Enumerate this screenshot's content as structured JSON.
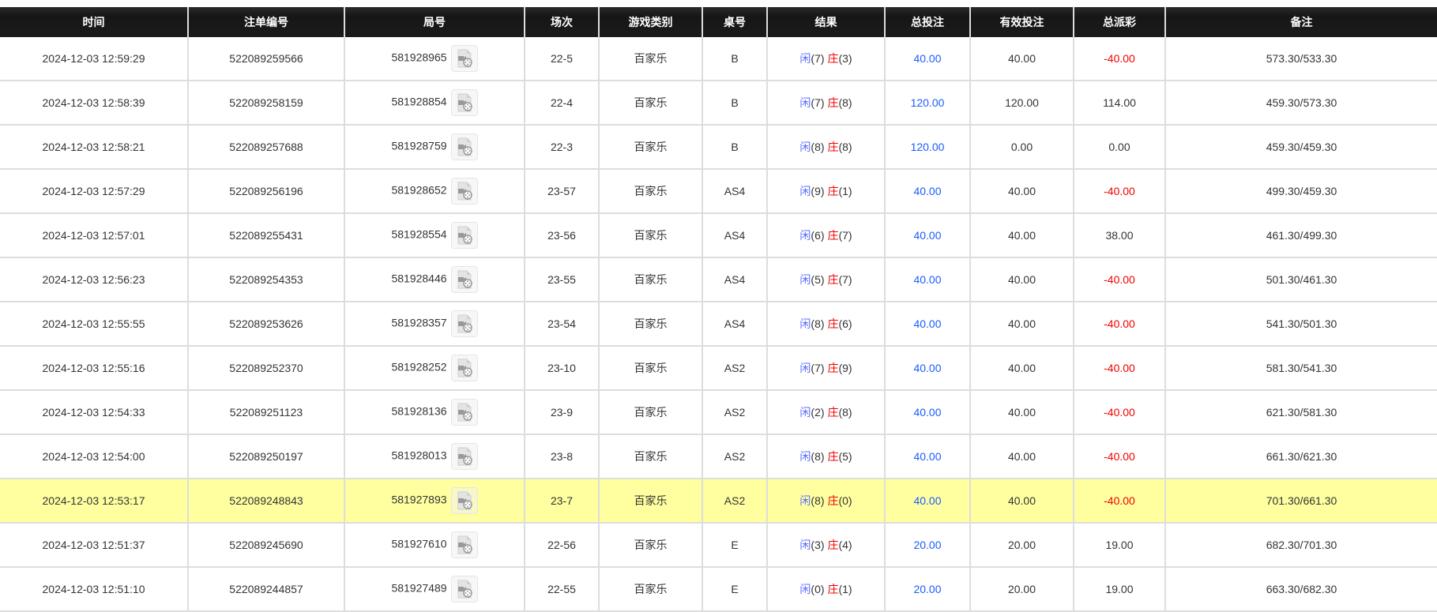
{
  "headers": [
    "时间",
    "注单编号",
    "局号",
    "场次",
    "游戏类别",
    "桌号",
    "结果",
    "总投注",
    "有效投注",
    "总派彩",
    "备注"
  ],
  "labels": {
    "player": "闲",
    "banker": "庄"
  },
  "colors": {
    "header_bg": "#1b1b1b",
    "highlight": "#ffff9f",
    "blue": "#1a5cff",
    "red": "#f00000"
  },
  "highlighted_row": 10,
  "rows": [
    {
      "time": "2024-12-03 12:59:29",
      "bet_id": "522089259566",
      "round": "581928965",
      "session": "22-5",
      "game": "百家乐",
      "table": "B",
      "player": "(7)",
      "banker": "(3)",
      "total": "40.00",
      "valid": "40.00",
      "payout": "-40.00",
      "note": "573.30/533.30"
    },
    {
      "time": "2024-12-03 12:58:39",
      "bet_id": "522089258159",
      "round": "581928854",
      "session": "22-4",
      "game": "百家乐",
      "table": "B",
      "player": "(7)",
      "banker": "(8)",
      "total": "120.00",
      "valid": "120.00",
      "payout": "114.00",
      "note": "459.30/573.30"
    },
    {
      "time": "2024-12-03 12:58:21",
      "bet_id": "522089257688",
      "round": "581928759",
      "session": "22-3",
      "game": "百家乐",
      "table": "B",
      "player": "(8)",
      "banker": "(8)",
      "total": "120.00",
      "valid": "0.00",
      "payout": "0.00",
      "note": "459.30/459.30"
    },
    {
      "time": "2024-12-03 12:57:29",
      "bet_id": "522089256196",
      "round": "581928652",
      "session": "23-57",
      "game": "百家乐",
      "table": "AS4",
      "player": "(9)",
      "banker": "(1)",
      "total": "40.00",
      "valid": "40.00",
      "payout": "-40.00",
      "note": "499.30/459.30"
    },
    {
      "time": "2024-12-03 12:57:01",
      "bet_id": "522089255431",
      "round": "581928554",
      "session": "23-56",
      "game": "百家乐",
      "table": "AS4",
      "player": "(6)",
      "banker": "(7)",
      "total": "40.00",
      "valid": "40.00",
      "payout": "38.00",
      "note": "461.30/499.30"
    },
    {
      "time": "2024-12-03 12:56:23",
      "bet_id": "522089254353",
      "round": "581928446",
      "session": "23-55",
      "game": "百家乐",
      "table": "AS4",
      "player": "(5)",
      "banker": "(7)",
      "total": "40.00",
      "valid": "40.00",
      "payout": "-40.00",
      "note": "501.30/461.30"
    },
    {
      "time": "2024-12-03 12:55:55",
      "bet_id": "522089253626",
      "round": "581928357",
      "session": "23-54",
      "game": "百家乐",
      "table": "AS4",
      "player": "(8)",
      "banker": "(6)",
      "total": "40.00",
      "valid": "40.00",
      "payout": "-40.00",
      "note": "541.30/501.30"
    },
    {
      "time": "2024-12-03 12:55:16",
      "bet_id": "522089252370",
      "round": "581928252",
      "session": "23-10",
      "game": "百家乐",
      "table": "AS2",
      "player": "(7)",
      "banker": "(9)",
      "total": "40.00",
      "valid": "40.00",
      "payout": "-40.00",
      "note": "581.30/541.30"
    },
    {
      "time": "2024-12-03 12:54:33",
      "bet_id": "522089251123",
      "round": "581928136",
      "session": "23-9",
      "game": "百家乐",
      "table": "AS2",
      "player": "(2)",
      "banker": "(8)",
      "total": "40.00",
      "valid": "40.00",
      "payout": "-40.00",
      "note": "621.30/581.30"
    },
    {
      "time": "2024-12-03 12:54:00",
      "bet_id": "522089250197",
      "round": "581928013",
      "session": "23-8",
      "game": "百家乐",
      "table": "AS2",
      "player": "(8)",
      "banker": "(5)",
      "total": "40.00",
      "valid": "40.00",
      "payout": "-40.00",
      "note": "661.30/621.30"
    },
    {
      "time": "2024-12-03 12:53:17",
      "bet_id": "522089248843",
      "round": "581927893",
      "session": "23-7",
      "game": "百家乐",
      "table": "AS2",
      "player": "(8)",
      "banker": "(0)",
      "total": "40.00",
      "valid": "40.00",
      "payout": "-40.00",
      "note": "701.30/661.30"
    },
    {
      "time": "2024-12-03 12:51:37",
      "bet_id": "522089245690",
      "round": "581927610",
      "session": "22-56",
      "game": "百家乐",
      "table": "E",
      "player": "(3)",
      "banker": "(4)",
      "total": "20.00",
      "valid": "20.00",
      "payout": "19.00",
      "note": "682.30/701.30"
    },
    {
      "time": "2024-12-03 12:51:10",
      "bet_id": "522089244857",
      "round": "581927489",
      "session": "22-55",
      "game": "百家乐",
      "table": "E",
      "player": "(0)",
      "banker": "(1)",
      "total": "20.00",
      "valid": "20.00",
      "payout": "19.00",
      "note": "663.30/682.30"
    }
  ]
}
